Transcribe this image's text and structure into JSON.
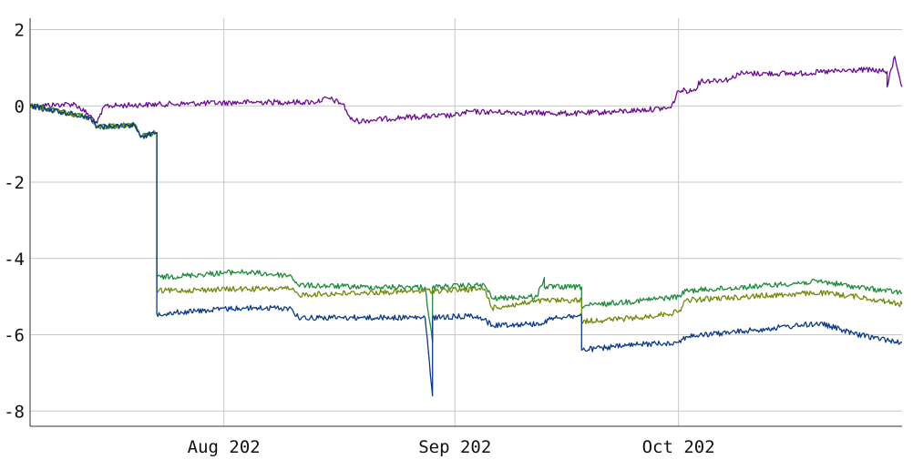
{
  "chart_data": {
    "type": "line",
    "title": "",
    "xlabel": "",
    "ylabel": "",
    "xlim": [
      "2022-07-06",
      "2022-10-31"
    ],
    "ylim": [
      -8.4,
      2.3
    ],
    "grid": true,
    "legend": "none",
    "x_ticks": [
      {
        "date": "2022-08-01",
        "label": "Aug 202"
      },
      {
        "date": "2022-09-01",
        "label": "Sep 202"
      },
      {
        "date": "2022-10-01",
        "label": "Oct 202"
      }
    ],
    "y_ticks": [
      {
        "value": 2,
        "label": "2"
      },
      {
        "value": 0,
        "label": "0"
      },
      {
        "value": -2,
        "label": "-2"
      },
      {
        "value": -4,
        "label": "-4"
      },
      {
        "value": -6,
        "label": "-6"
      },
      {
        "value": -8,
        "label": "-8"
      }
    ],
    "series": [
      {
        "color": "#6a0d91",
        "points": [
          [
            "2022-07-06",
            0.0
          ],
          [
            "2022-07-12",
            0.05
          ],
          [
            "2022-07-14",
            -0.25
          ],
          [
            "2022-07-15",
            -0.45
          ],
          [
            "2022-07-16",
            0.0
          ],
          [
            "2022-07-25",
            0.05
          ],
          [
            "2022-08-05",
            0.1
          ],
          [
            "2022-08-13",
            0.1
          ],
          [
            "2022-08-15",
            0.2
          ],
          [
            "2022-08-17",
            0.05
          ],
          [
            "2022-08-18",
            -0.35
          ],
          [
            "2022-08-19",
            -0.4
          ],
          [
            "2022-08-25",
            -0.3
          ],
          [
            "2022-09-01",
            -0.25
          ],
          [
            "2022-09-03",
            -0.15
          ],
          [
            "2022-09-17",
            -0.2
          ],
          [
            "2022-09-23",
            -0.15
          ],
          [
            "2022-09-30",
            -0.05
          ],
          [
            "2022-10-01",
            0.4
          ],
          [
            "2022-10-03",
            0.4
          ],
          [
            "2022-10-04",
            0.65
          ],
          [
            "2022-10-08",
            0.7
          ],
          [
            "2022-10-09",
            0.85
          ],
          [
            "2022-10-17",
            0.85
          ],
          [
            "2022-10-26",
            0.95
          ],
          [
            "2022-10-29",
            0.9
          ],
          [
            "2022-10-29",
            0.5
          ],
          [
            "2022-10-30",
            1.3
          ],
          [
            "2022-10-31",
            0.5
          ]
        ]
      },
      {
        "color": "#1e8a3c",
        "points": [
          [
            "2022-07-06",
            0.0
          ],
          [
            "2022-07-10",
            -0.15
          ],
          [
            "2022-07-14",
            -0.3
          ],
          [
            "2022-07-15",
            -0.55
          ],
          [
            "2022-07-20",
            -0.5
          ],
          [
            "2022-07-21",
            -0.8
          ],
          [
            "2022-07-23",
            -0.7
          ],
          [
            "2022-07-23",
            -4.5
          ],
          [
            "2022-08-03",
            -4.35
          ],
          [
            "2022-08-10",
            -4.45
          ],
          [
            "2022-08-11",
            -4.7
          ],
          [
            "2022-08-20",
            -4.75
          ],
          [
            "2022-08-28",
            -4.75
          ],
          [
            "2022-08-29",
            -6.2
          ],
          [
            "2022-08-29",
            -4.75
          ],
          [
            "2022-09-05",
            -4.7
          ],
          [
            "2022-09-06",
            -5.05
          ],
          [
            "2022-09-12",
            -5.0
          ],
          [
            "2022-09-13",
            -4.5
          ],
          [
            "2022-09-13",
            -4.75
          ],
          [
            "2022-09-18",
            -4.75
          ],
          [
            "2022-09-18",
            -5.25
          ],
          [
            "2022-09-26",
            -5.1
          ],
          [
            "2022-10-01",
            -5.0
          ],
          [
            "2022-10-02",
            -4.85
          ],
          [
            "2022-10-10",
            -4.75
          ],
          [
            "2022-10-20",
            -4.6
          ],
          [
            "2022-10-25",
            -4.75
          ],
          [
            "2022-10-31",
            -4.9
          ]
        ]
      },
      {
        "color": "#6f8a0a",
        "points": [
          [
            "2022-07-06",
            0.0
          ],
          [
            "2022-07-10",
            -0.15
          ],
          [
            "2022-07-14",
            -0.3
          ],
          [
            "2022-07-15",
            -0.55
          ],
          [
            "2022-07-20",
            -0.5
          ],
          [
            "2022-07-21",
            -0.8
          ],
          [
            "2022-07-23",
            -0.7
          ],
          [
            "2022-07-23",
            -4.85
          ],
          [
            "2022-08-03",
            -4.8
          ],
          [
            "2022-08-10",
            -4.8
          ],
          [
            "2022-08-11",
            -4.95
          ],
          [
            "2022-08-20",
            -4.9
          ],
          [
            "2022-08-28",
            -4.85
          ],
          [
            "2022-09-05",
            -4.8
          ],
          [
            "2022-09-06",
            -5.3
          ],
          [
            "2022-09-13",
            -5.1
          ],
          [
            "2022-09-18",
            -5.1
          ],
          [
            "2022-09-18",
            -5.65
          ],
          [
            "2022-09-26",
            -5.55
          ],
          [
            "2022-10-01",
            -5.4
          ],
          [
            "2022-10-02",
            -5.1
          ],
          [
            "2022-10-10",
            -5.0
          ],
          [
            "2022-10-20",
            -4.9
          ],
          [
            "2022-10-25",
            -5.0
          ],
          [
            "2022-10-31",
            -5.2
          ]
        ]
      },
      {
        "color": "#0b3a86",
        "points": [
          [
            "2022-07-06",
            0.0
          ],
          [
            "2022-07-10",
            -0.15
          ],
          [
            "2022-07-14",
            -0.3
          ],
          [
            "2022-07-15",
            -0.55
          ],
          [
            "2022-07-20",
            -0.5
          ],
          [
            "2022-07-21",
            -0.8
          ],
          [
            "2022-07-23",
            -0.7
          ],
          [
            "2022-07-23",
            -5.45
          ],
          [
            "2022-08-03",
            -5.3
          ],
          [
            "2022-08-10",
            -5.3
          ],
          [
            "2022-08-11",
            -5.55
          ],
          [
            "2022-08-20",
            -5.55
          ],
          [
            "2022-08-28",
            -5.55
          ],
          [
            "2022-08-29",
            -7.6
          ],
          [
            "2022-08-29",
            -5.55
          ],
          [
            "2022-09-04",
            -5.5
          ],
          [
            "2022-09-06",
            -5.75
          ],
          [
            "2022-09-13",
            -5.7
          ],
          [
            "2022-09-14",
            -5.55
          ],
          [
            "2022-09-18",
            -5.5
          ],
          [
            "2022-09-18",
            -6.4
          ],
          [
            "2022-09-26",
            -6.25
          ],
          [
            "2022-10-01",
            -6.2
          ],
          [
            "2022-10-02",
            -6.05
          ],
          [
            "2022-10-10",
            -5.9
          ],
          [
            "2022-10-20",
            -5.7
          ],
          [
            "2022-10-25",
            -6.0
          ],
          [
            "2022-10-31",
            -6.2
          ]
        ]
      }
    ]
  }
}
